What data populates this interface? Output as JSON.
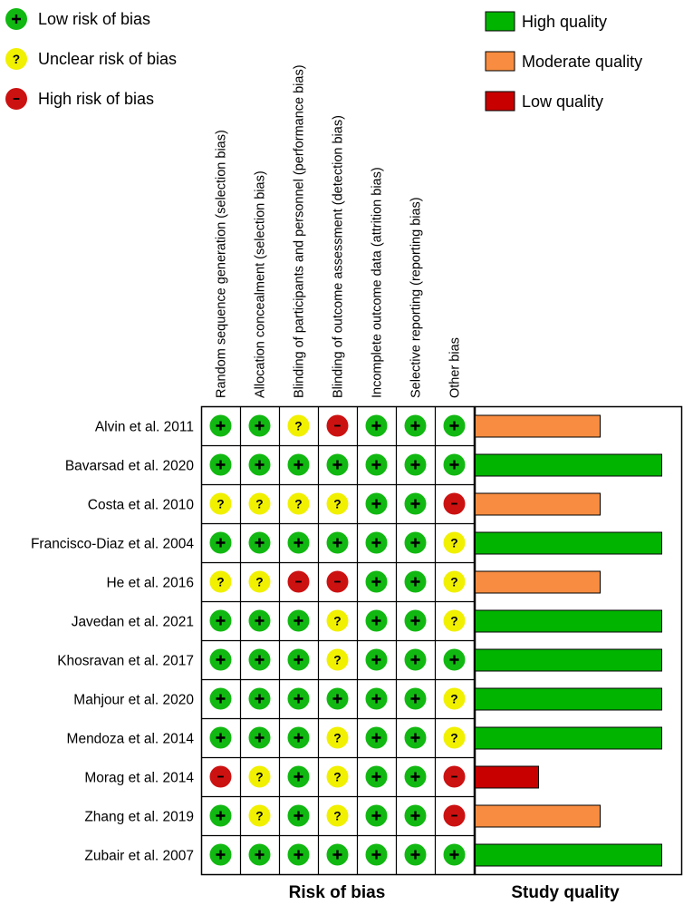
{
  "legend_risk": [
    {
      "key": "low",
      "symbol": "+",
      "label": "Low risk of bias"
    },
    {
      "key": "unclear",
      "symbol": "?",
      "label": "Unclear risk of bias"
    },
    {
      "key": "high",
      "symbol": "−",
      "label": "High risk of bias"
    }
  ],
  "legend_quality": [
    {
      "key": "high",
      "label": "High quality"
    },
    {
      "key": "moderate",
      "label": "Moderate quality"
    },
    {
      "key": "low",
      "label": "Low quality"
    }
  ],
  "colors": {
    "low_risk": "#11b811",
    "unclear_risk": "#f0f000",
    "high_risk": "#cc1111",
    "high_quality": "#00b400",
    "moderate_quality": "#f88c40",
    "low_quality": "#c80000"
  },
  "chart_data": {
    "type": "table",
    "domains": [
      "Random sequence generation (selection bias)",
      "Allocation concealment (selection bias)",
      "Blinding of participants and personnel (performance bias)",
      "Blinding of outcome assessment (detection bias)",
      "Incomplete outcome data (attrition bias)",
      "Selective reporting (reporting bias)",
      "Other bias"
    ],
    "studies": [
      {
        "name": "Alvin et al. 2011",
        "risk": [
          "low",
          "low",
          "unclear",
          "high",
          "low",
          "low",
          "low"
        ],
        "quality": "moderate"
      },
      {
        "name": "Bavarsad et al. 2020",
        "risk": [
          "low",
          "low",
          "low",
          "low",
          "low",
          "low",
          "low"
        ],
        "quality": "high"
      },
      {
        "name": "Costa et al. 2010",
        "risk": [
          "unclear",
          "unclear",
          "unclear",
          "unclear",
          "low",
          "low",
          "high"
        ],
        "quality": "moderate"
      },
      {
        "name": "Francisco-Diaz et al. 2004",
        "risk": [
          "low",
          "low",
          "low",
          "low",
          "low",
          "low",
          "unclear"
        ],
        "quality": "high"
      },
      {
        "name": "He et al. 2016",
        "risk": [
          "unclear",
          "unclear",
          "high",
          "high",
          "low",
          "low",
          "unclear"
        ],
        "quality": "moderate"
      },
      {
        "name": "Javedan et al. 2021",
        "risk": [
          "low",
          "low",
          "low",
          "unclear",
          "low",
          "low",
          "unclear"
        ],
        "quality": "high"
      },
      {
        "name": "Khosravan et al. 2017",
        "risk": [
          "low",
          "low",
          "low",
          "unclear",
          "low",
          "low",
          "low"
        ],
        "quality": "high"
      },
      {
        "name": "Mahjour et al. 2020",
        "risk": [
          "low",
          "low",
          "low",
          "low",
          "low",
          "low",
          "unclear"
        ],
        "quality": "high"
      },
      {
        "name": "Mendoza et al. 2014",
        "risk": [
          "low",
          "low",
          "low",
          "unclear",
          "low",
          "low",
          "unclear"
        ],
        "quality": "high"
      },
      {
        "name": "Morag et al. 2014",
        "risk": [
          "high",
          "unclear",
          "low",
          "unclear",
          "low",
          "low",
          "high"
        ],
        "quality": "low"
      },
      {
        "name": "Zhang et al. 2019",
        "risk": [
          "low",
          "unclear",
          "low",
          "unclear",
          "low",
          "low",
          "high"
        ],
        "quality": "moderate"
      },
      {
        "name": "Zubair et al. 2007",
        "risk": [
          "low",
          "low",
          "low",
          "low",
          "low",
          "low",
          "low"
        ],
        "quality": "high"
      }
    ],
    "quality_scale": {
      "high": 1.0,
      "moderate": 0.67,
      "low": 0.34
    },
    "footer_left": "Risk of bias",
    "footer_right": "Study quality"
  }
}
